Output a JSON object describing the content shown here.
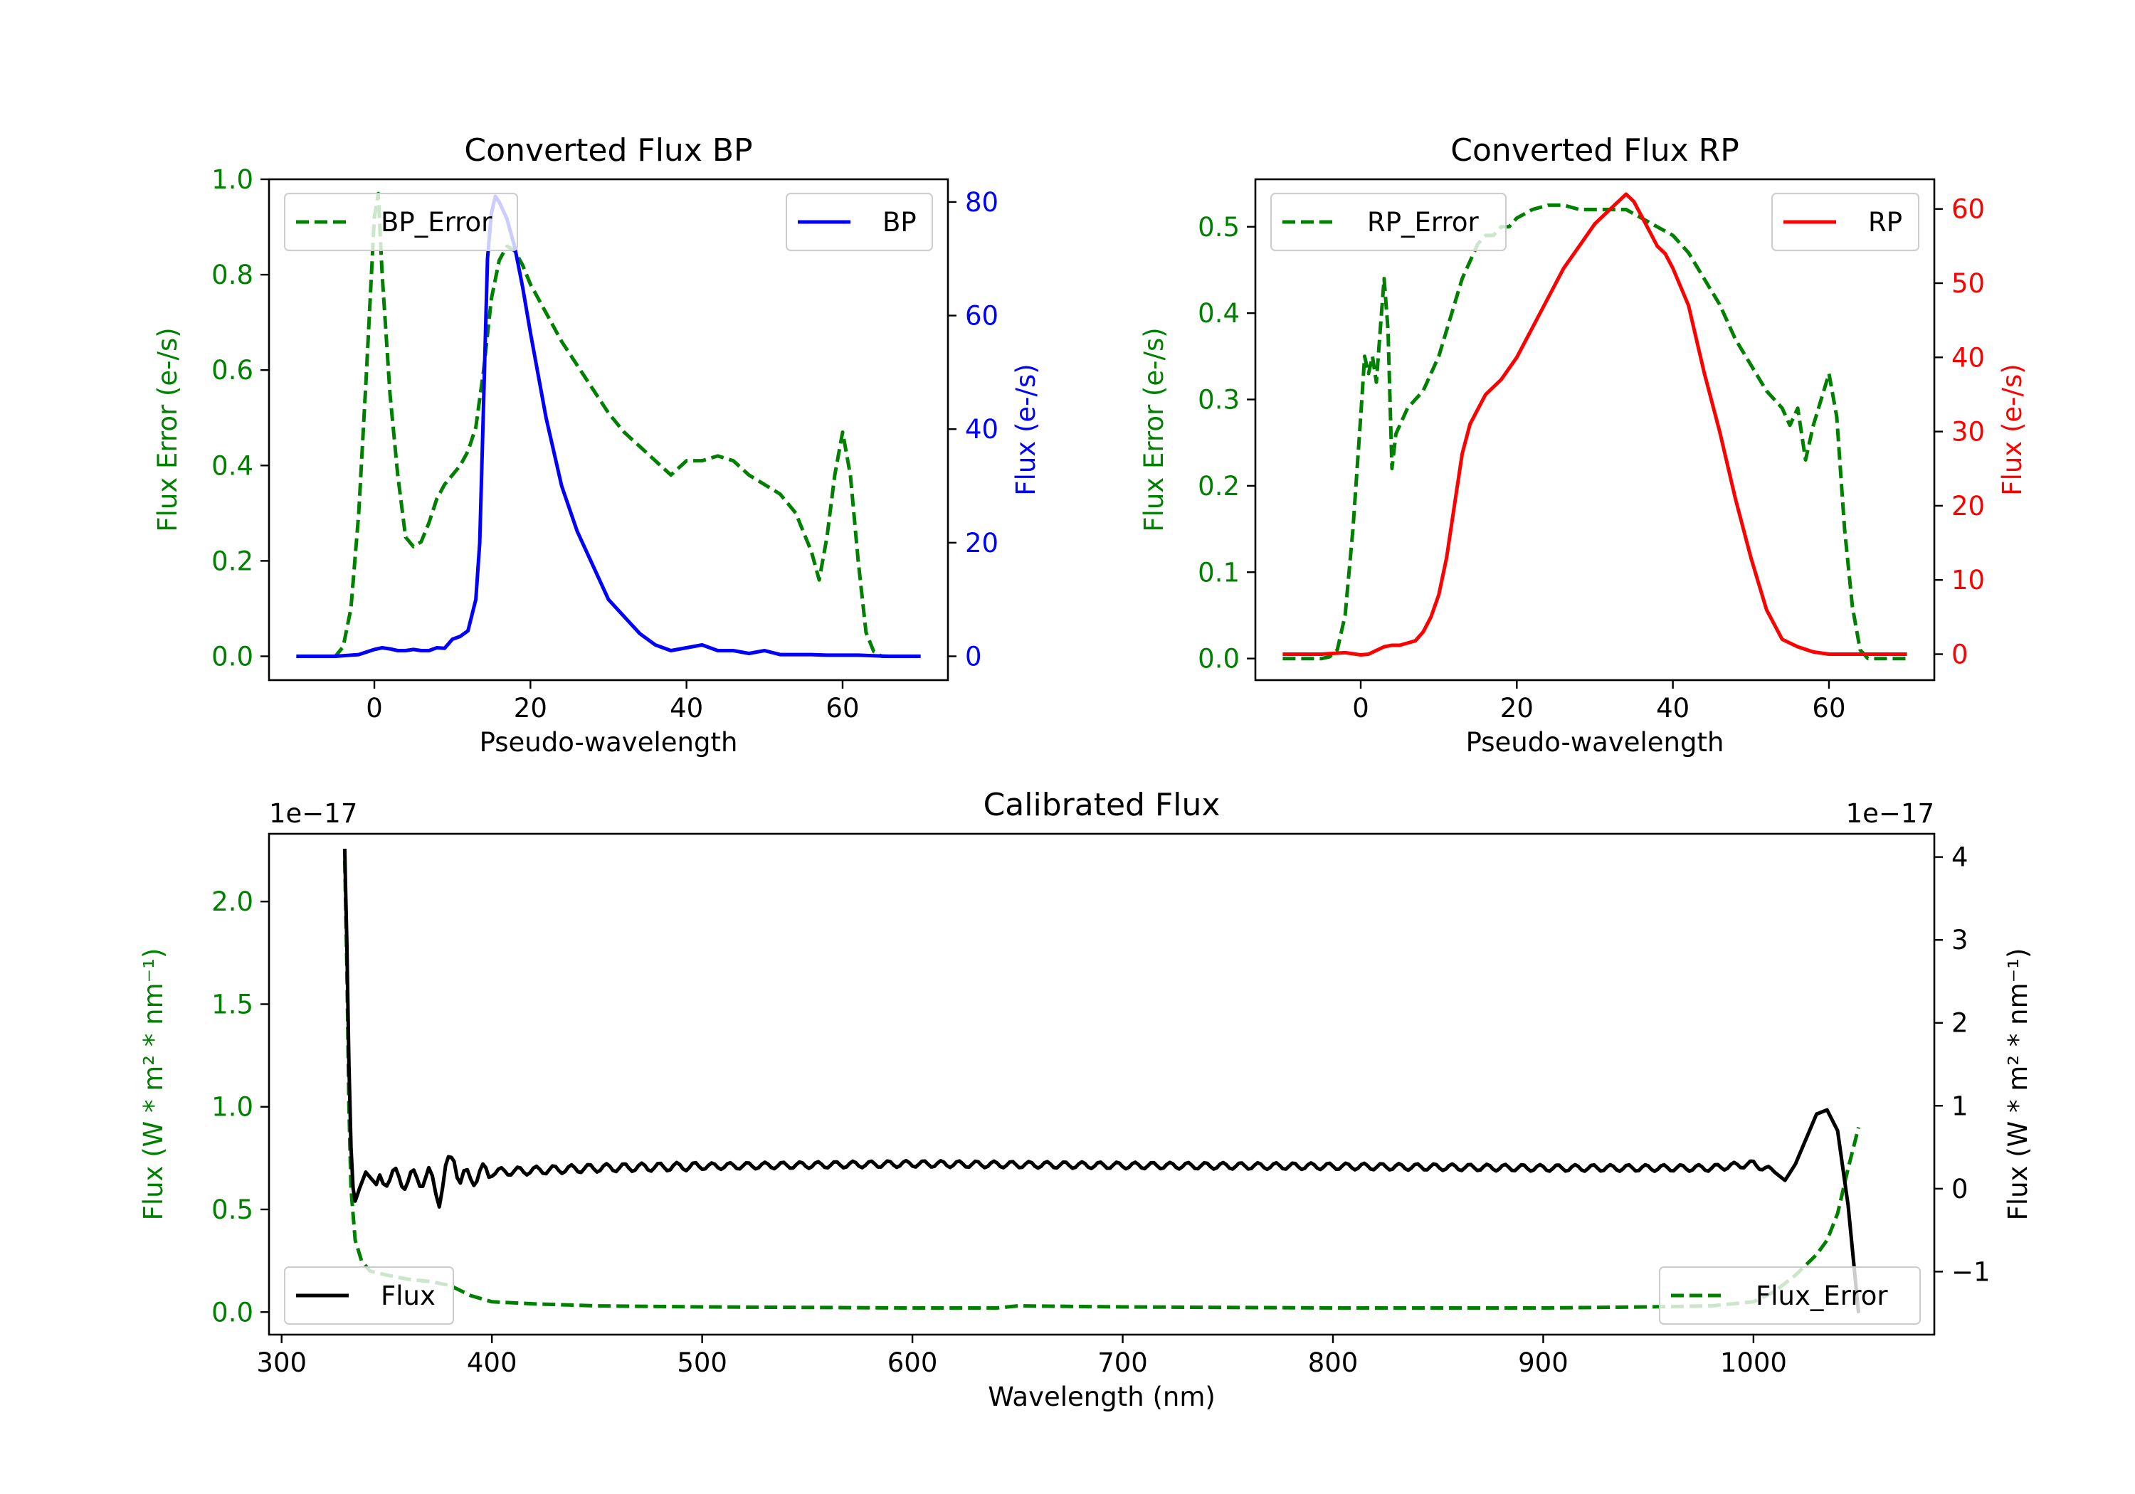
{
  "colors": {
    "error": "#008000",
    "bp": "#0000ff",
    "rp": "#ff0000",
    "flux": "#000000",
    "axis": "#000000"
  },
  "chart_data": [
    {
      "type": "line",
      "title": "Converted Flux BP",
      "xlabel": "Pseudo-wavelength",
      "ylabel_left": "Flux Error (e-/s)",
      "ylabel_right": "Flux (e-/s)",
      "xlim": [
        -13.5,
        73.5
      ],
      "ylim_left": [
        -0.05,
        1.0
      ],
      "ylim_right": [
        -4.2,
        84
      ],
      "xticks": [
        0,
        20,
        40,
        60
      ],
      "yticks_left": [
        0.0,
        0.2,
        0.4,
        0.6,
        0.8,
        1.0
      ],
      "yticks_right": [
        0,
        20,
        40,
        60,
        80
      ],
      "series": [
        {
          "name": "BP_Error",
          "axis": "left",
          "style": "dashed",
          "color": "#008000",
          "x": [
            -10,
            -5,
            -4,
            -3,
            -2,
            -1,
            0,
            0.5,
            1,
            2,
            3,
            4,
            5,
            6,
            7,
            8,
            9,
            10,
            11,
            12,
            13,
            14,
            15,
            16,
            17,
            18,
            19,
            20,
            22,
            24,
            26,
            28,
            30,
            32,
            34,
            36,
            38,
            40,
            42,
            44,
            46,
            48,
            50,
            52,
            54,
            55,
            56,
            57,
            58,
            59,
            60,
            61,
            62,
            63,
            64,
            65,
            70
          ],
          "y": [
            0,
            0,
            0.02,
            0.1,
            0.3,
            0.6,
            0.92,
            0.97,
            0.8,
            0.55,
            0.38,
            0.25,
            0.23,
            0.24,
            0.28,
            0.33,
            0.36,
            0.38,
            0.4,
            0.43,
            0.48,
            0.6,
            0.75,
            0.83,
            0.86,
            0.85,
            0.82,
            0.78,
            0.72,
            0.66,
            0.61,
            0.56,
            0.51,
            0.47,
            0.44,
            0.41,
            0.38,
            0.41,
            0.41,
            0.42,
            0.41,
            0.38,
            0.36,
            0.34,
            0.3,
            0.26,
            0.22,
            0.16,
            0.25,
            0.38,
            0.47,
            0.38,
            0.2,
            0.05,
            0.01,
            0,
            0
          ]
        },
        {
          "name": "BP",
          "axis": "right",
          "style": "solid",
          "color": "#0000ff",
          "x": [
            -10,
            -5,
            -2,
            0,
            1,
            2,
            3,
            4,
            5,
            6,
            7,
            8,
            9,
            10,
            11,
            12,
            13,
            13.5,
            14,
            14.5,
            15,
            15.5,
            16,
            17,
            18,
            19,
            20,
            22,
            24,
            26,
            28,
            30,
            32,
            34,
            36,
            38,
            40,
            42,
            44,
            46,
            48,
            50,
            52,
            54,
            56,
            58,
            60,
            62,
            64,
            66,
            70
          ],
          "y": [
            0,
            0,
            0.3,
            1.2,
            1.5,
            1.3,
            1.0,
            1.0,
            1.2,
            1.0,
            1.0,
            1.5,
            1.4,
            3.0,
            3.5,
            4.5,
            10,
            20,
            45,
            70,
            78,
            81,
            80,
            77,
            72,
            65,
            57,
            42,
            30,
            22,
            16,
            10,
            7,
            4,
            2,
            1,
            1.5,
            2,
            1,
            1,
            0.5,
            1,
            0.3,
            0.3,
            0.3,
            0.2,
            0.2,
            0.2,
            0.1,
            0,
            0
          ]
        }
      ],
      "legend": [
        {
          "label": "BP_Error",
          "placement": "upper left"
        },
        {
          "label": "BP",
          "placement": "upper right"
        }
      ]
    },
    {
      "type": "line",
      "title": "Converted Flux RP",
      "xlabel": "Pseudo-wavelength",
      "ylabel_left": "Flux Error (e-/s)",
      "ylabel_right": "Flux (e-/s)",
      "xlim": [
        -13.5,
        73.5
      ],
      "ylim_left": [
        -0.025,
        0.555
      ],
      "ylim_right": [
        -3.5,
        64
      ],
      "xticks": [
        0,
        20,
        40,
        60
      ],
      "yticks_left": [
        0.0,
        0.1,
        0.2,
        0.3,
        0.4,
        0.5
      ],
      "yticks_right": [
        0,
        10,
        20,
        30,
        40,
        50,
        60
      ],
      "series": [
        {
          "name": "RP_Error",
          "axis": "left",
          "style": "dashed",
          "color": "#008000",
          "x": [
            -10,
            -5,
            -4,
            -3,
            -2,
            -1,
            0,
            0.5,
            1,
            1.5,
            2,
            2.5,
            3,
            3.5,
            4,
            4.5,
            5,
            6,
            7,
            8,
            9,
            10,
            11,
            12,
            13,
            14,
            15,
            16,
            17,
            18,
            19,
            20,
            22,
            24,
            26,
            28,
            30,
            32,
            34,
            36,
            38,
            40,
            42,
            44,
            46,
            48,
            50,
            52,
            54,
            55,
            56,
            57,
            58,
            59,
            60,
            61,
            62,
            63,
            64,
            65,
            70
          ],
          "y": [
            0,
            0,
            0.002,
            0.01,
            0.05,
            0.15,
            0.28,
            0.35,
            0.33,
            0.35,
            0.32,
            0.38,
            0.44,
            0.38,
            0.22,
            0.26,
            0.27,
            0.29,
            0.3,
            0.31,
            0.33,
            0.35,
            0.38,
            0.41,
            0.44,
            0.46,
            0.48,
            0.49,
            0.49,
            0.5,
            0.5,
            0.51,
            0.52,
            0.525,
            0.525,
            0.52,
            0.52,
            0.52,
            0.52,
            0.51,
            0.5,
            0.49,
            0.47,
            0.44,
            0.41,
            0.37,
            0.34,
            0.31,
            0.29,
            0.27,
            0.29,
            0.23,
            0.27,
            0.3,
            0.33,
            0.28,
            0.15,
            0.06,
            0.01,
            0,
            0
          ]
        },
        {
          "name": "RP",
          "axis": "right",
          "style": "solid",
          "color": "#ff0000",
          "x": [
            -10,
            -5,
            -2,
            0,
            1,
            2,
            3,
            4,
            5,
            6,
            7,
            8,
            9,
            10,
            11,
            12,
            13,
            14,
            15,
            16,
            18,
            20,
            22,
            24,
            26,
            28,
            30,
            32,
            33,
            34,
            35,
            36,
            37,
            38,
            39,
            40,
            42,
            44,
            46,
            48,
            50,
            52,
            54,
            56,
            58,
            60,
            62,
            65,
            70
          ],
          "y": [
            0,
            0,
            0.2,
            -0.1,
            0,
            0.5,
            1,
            1.2,
            1.2,
            1.5,
            1.8,
            3,
            5,
            8,
            13,
            20,
            27,
            31,
            33,
            35,
            37,
            40,
            44,
            48,
            52,
            55,
            58,
            60,
            61,
            62,
            61,
            59,
            57,
            55,
            54,
            52,
            47,
            38,
            30,
            21,
            13,
            6,
            2,
            1,
            0.3,
            0,
            0,
            0,
            0
          ]
        }
      ],
      "legend": [
        {
          "label": "RP_Error",
          "placement": "upper left"
        },
        {
          "label": "RP",
          "placement": "upper right"
        }
      ]
    },
    {
      "type": "line",
      "title": "Calibrated Flux",
      "xlabel": "Wavelength (nm)",
      "ylabel_left": "Flux (W * m² * nm⁻¹)",
      "ylabel_right": "Flux (W * m² * nm⁻¹)",
      "offset_left": "1e−17",
      "offset_right": "1e−17",
      "xlim": [
        294,
        1086
      ],
      "ylim_left": [
        -0.11,
        2.33
      ],
      "ylim_right": [
        -1.76,
        4.28
      ],
      "xticks": [
        300,
        400,
        500,
        600,
        700,
        800,
        900,
        1000
      ],
      "yticks_left": [
        0.0,
        0.5,
        1.0,
        1.5,
        2.0
      ],
      "ytick_labels_left": [
        "0.0",
        "0.5",
        "1.0",
        "1.5",
        "2.0"
      ],
      "yticks_right": [
        -1,
        0,
        1,
        2,
        3,
        4
      ],
      "ytick_labels_right": [
        "−1",
        "0",
        "1",
        "2",
        "3",
        "4"
      ],
      "series": [
        {
          "name": "Flux_Error",
          "axis": "left",
          "style": "dashed",
          "color": "#008000",
          "x": [
            330,
            331,
            332,
            333,
            335,
            338,
            342,
            350,
            360,
            370,
            380,
            390,
            400,
            420,
            450,
            500,
            600,
            640,
            650,
            700,
            800,
            900,
            950,
            980,
            1000,
            1010,
            1020,
            1030,
            1035,
            1040,
            1045,
            1050
          ],
          "y": [
            2.2,
            1.7,
            1.0,
            0.6,
            0.35,
            0.25,
            0.2,
            0.18,
            0.16,
            0.15,
            0.13,
            0.08,
            0.05,
            0.04,
            0.03,
            0.025,
            0.02,
            0.02,
            0.03,
            0.025,
            0.02,
            0.02,
            0.025,
            0.03,
            0.05,
            0.1,
            0.18,
            0.28,
            0.35,
            0.48,
            0.7,
            0.9
          ]
        },
        {
          "name": "Flux",
          "axis": "right",
          "style": "solid",
          "color": "#000000",
          "wavy_from_nm": 345,
          "wavy_to_nm": 1010,
          "x": [
            330,
            331,
            332,
            333,
            334,
            335,
            337,
            340,
            345,
            350,
            360,
            370,
            375,
            378,
            382,
            385,
            390,
            400,
            450,
            500,
            600,
            700,
            800,
            900,
            950,
            980,
            1000,
            1010,
            1015,
            1020,
            1025,
            1030,
            1035,
            1040,
            1045,
            1050
          ],
          "y": [
            4.1,
            3.0,
            1.5,
            0.5,
            0,
            -0.15,
            0,
            0.2,
            0.05,
            0.15,
            0.1,
            0.15,
            -0.1,
            0.2,
            0.4,
            0.1,
            0.15,
            0.2,
            0.25,
            0.27,
            0.3,
            0.28,
            0.27,
            0.25,
            0.25,
            0.25,
            0.3,
            0.2,
            0.1,
            0.3,
            0.6,
            0.9,
            0.95,
            0.7,
            -0.2,
            -1.5
          ]
        }
      ],
      "legend": [
        {
          "label": "Flux",
          "placement": "lower left"
        },
        {
          "label": "Flux_Error",
          "placement": "lower right"
        }
      ]
    }
  ]
}
